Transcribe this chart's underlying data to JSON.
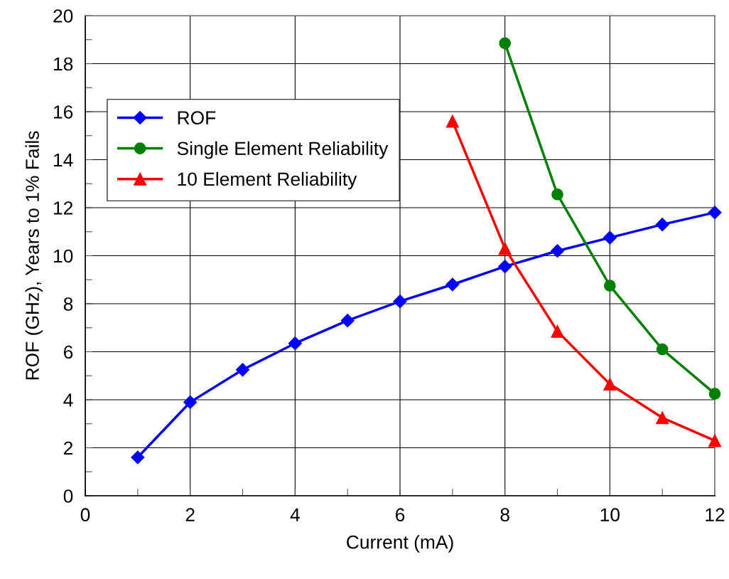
{
  "chart_data": {
    "type": "line",
    "xlabel": "Current (mA)",
    "ylabel": "ROF (GHz), Years to 1% Fails",
    "xlim": [
      0,
      12
    ],
    "ylim": [
      0,
      20
    ],
    "xticks": [
      0,
      {
        "value": 1,
        "label": null
      },
      2,
      {
        "value": 3,
        "label": null
      },
      4,
      {
        "value": 5,
        "label": null
      },
      6,
      {
        "value": 7,
        "label": null
      },
      8,
      {
        "value": 9,
        "label": null
      },
      10,
      {
        "value": 11,
        "label": null
      },
      12
    ],
    "yticks": [
      0,
      {
        "value": 1,
        "label": null
      },
      2,
      {
        "value": 3,
        "label": null
      },
      4,
      {
        "value": 5,
        "label": null
      },
      6,
      {
        "value": 7,
        "label": null
      },
      8,
      {
        "value": 9,
        "label": null
      },
      10,
      {
        "value": 11,
        "label": null
      },
      12,
      {
        "value": 13,
        "label": null
      },
      14,
      {
        "value": 15,
        "label": null
      },
      16,
      {
        "value": 17,
        "label": null
      },
      18,
      {
        "value": 19,
        "label": null
      },
      20
    ],
    "grid": true,
    "legend": "left",
    "series": [
      {
        "name": "ROF",
        "color": "#0000ff",
        "marker": "diamond",
        "x": [
          1,
          2,
          3,
          4,
          5,
          6,
          7,
          8,
          9,
          10,
          11,
          12
        ],
        "values": [
          1.6,
          3.9,
          5.25,
          6.35,
          7.3,
          8.1,
          8.8,
          9.55,
          10.2,
          10.75,
          11.3,
          11.8
        ]
      },
      {
        "name": "Single Element Reliability",
        "color": "#008000",
        "marker": "circle",
        "x": [
          8,
          9,
          10,
          11,
          12
        ],
        "values": [
          18.85,
          12.55,
          8.75,
          6.1,
          4.25
        ]
      },
      {
        "name": "10 Element Reliability",
        "color": "#ff0000",
        "marker": "triangle",
        "x": [
          7,
          8,
          9,
          10,
          11,
          12
        ],
        "values": [
          15.6,
          10.3,
          6.85,
          4.65,
          3.25,
          2.3
        ]
      }
    ]
  }
}
